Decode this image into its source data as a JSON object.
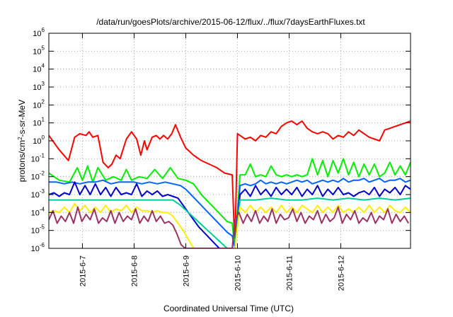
{
  "chart_data": {
    "type": "line",
    "title": "/data/run/goesPlots/archive/2015-06-12/flux/../flux/7daysEarthFluxes.txt",
    "xlabel": "Coordinated Universal Time (UTC)",
    "ylabel_parts": {
      "base": "protons/cm",
      "sup": "2",
      "rest": "-s-sr-MeV"
    },
    "yscale": "log",
    "ylim_exp": [
      -6,
      6
    ],
    "ytick_base": "10",
    "ytick_exponents": [
      "6",
      "5",
      "4",
      "3",
      "2",
      "1",
      "0",
      "-1",
      "-2",
      "-3",
      "-4",
      "-5",
      "-6"
    ],
    "xlim_days": [
      0,
      7
    ],
    "xtick_labels": [
      "2015-6-7",
      "2015-6-8",
      "2015-6-9",
      "2015-6-10",
      "2015-6-11",
      "2015-6-12"
    ],
    "xtick_positions_days": [
      0.65,
      1.65,
      2.65,
      3.65,
      4.65,
      5.65
    ],
    "grid": true,
    "data_gap_days": [
      3.55,
      3.6
    ],
    "series": [
      {
        "name": "red",
        "color": "#ff0000",
        "t": [
          0,
          0.2,
          0.38,
          0.5,
          0.6,
          0.72,
          0.78,
          0.85,
          0.95,
          1.05,
          1.15,
          1.22,
          1.3,
          1.38,
          1.5,
          1.6,
          1.7,
          1.78,
          1.85,
          1.9,
          2.0,
          2.08,
          2.15,
          2.22,
          2.3,
          2.38,
          2.45,
          2.55,
          2.65,
          2.8,
          2.95,
          3.1,
          3.25,
          3.4,
          3.55,
          3.6,
          3.65,
          3.7,
          3.8,
          3.9,
          4.0,
          4.1,
          4.2,
          4.3,
          4.4,
          4.5,
          4.6,
          4.7,
          4.8,
          4.9,
          5.0,
          5.1,
          5.2,
          5.3,
          5.4,
          5.5,
          5.6,
          5.7,
          5.8,
          5.9,
          6.0,
          6.1,
          6.2,
          6.3,
          6.4,
          6.5,
          6.6,
          6.7,
          6.8,
          6.9,
          7.0
        ],
        "log10": [
          0.3,
          -0.5,
          -1.1,
          0.2,
          0.4,
          0.3,
          0.5,
          0.2,
          0.3,
          -1.2,
          -1.5,
          -1.3,
          -0.8,
          -1.0,
          0.1,
          0.5,
          0.1,
          -0.8,
          0.0,
          -0.5,
          0.2,
          0.3,
          0.1,
          0.3,
          0.1,
          0.4,
          0.9,
          0.2,
          -0.4,
          -0.8,
          -1.1,
          -1.3,
          -1.5,
          -1.8,
          -1.9,
          -6,
          0.4,
          0.3,
          0.1,
          0.2,
          0.0,
          0.3,
          0.2,
          0.5,
          0.4,
          0.8,
          1.0,
          1.1,
          0.9,
          1.1,
          0.7,
          0.5,
          0.4,
          0.5,
          0.4,
          0.1,
          0.3,
          0.2,
          0.5,
          0.3,
          0.6,
          0.4,
          0.2,
          0.1,
          0.0,
          0.6,
          0.7,
          0.8,
          0.9,
          1.0,
          1.1
        ]
      },
      {
        "name": "green",
        "color": "#00ee00",
        "t": [
          0,
          0.2,
          0.4,
          0.55,
          0.65,
          0.75,
          0.85,
          0.95,
          1.1,
          1.25,
          1.4,
          1.5,
          1.6,
          1.75,
          1.9,
          2.05,
          2.2,
          2.35,
          2.5,
          2.65,
          2.8,
          2.95,
          3.05,
          3.15,
          3.25,
          3.35,
          3.45,
          3.55,
          3.6,
          3.7,
          3.8,
          3.9,
          4.0,
          4.1,
          4.2,
          4.3,
          4.4,
          4.5,
          4.6,
          4.7,
          4.8,
          4.9,
          5.0,
          5.1,
          5.2,
          5.3,
          5.4,
          5.5,
          5.6,
          5.7,
          5.8,
          5.9,
          6.0,
          6.1,
          6.2,
          6.3,
          6.4,
          6.5,
          6.6,
          6.7,
          6.8,
          6.9,
          7.0
        ],
        "log10": [
          -1.8,
          -2.2,
          -2.3,
          -1.5,
          -2.2,
          -1.4,
          -2.3,
          -1.5,
          -2.2,
          -2.0,
          -2.2,
          -1.6,
          -2.2,
          -2.0,
          -2.1,
          -1.6,
          -2.1,
          -1.5,
          -2.1,
          -2.2,
          -2.4,
          -3.0,
          -3.3,
          -3.6,
          -3.9,
          -4.2,
          -4.5,
          -4.6,
          -6,
          -1.9,
          -1.9,
          -1.3,
          -2.0,
          -1.9,
          -2.0,
          -1.4,
          -1.9,
          -2.0,
          -1.9,
          -2.0,
          -1.9,
          -2.0,
          -1.9,
          -1.0,
          -1.9,
          -1.1,
          -2.0,
          -1.1,
          -1.8,
          -1.0,
          -1.9,
          -1.2,
          -2.0,
          -1.3,
          -1.9,
          -1.3,
          -2.0,
          -1.8,
          -1.2,
          -1.9,
          -1.4,
          -1.9,
          -1.2
        ]
      },
      {
        "name": "blue_light",
        "color": "#0066ff",
        "t": [
          0,
          0.15,
          0.3,
          0.45,
          0.6,
          0.75,
          0.9,
          1.05,
          1.2,
          1.35,
          1.5,
          1.65,
          1.8,
          1.95,
          2.1,
          2.25,
          2.4,
          2.55,
          2.65,
          2.75,
          2.85,
          2.95,
          3.05,
          3.15,
          3.25,
          3.35,
          3.45,
          3.55,
          3.6,
          3.7,
          3.8,
          3.9,
          4.0,
          4.1,
          4.2,
          4.3,
          4.4,
          4.5,
          4.6,
          4.7,
          4.8,
          4.9,
          5.0,
          5.1,
          5.2,
          5.3,
          5.4,
          5.5,
          5.6,
          5.7,
          5.8,
          5.9,
          6.0,
          6.1,
          6.2,
          6.3,
          6.4,
          6.5,
          6.6,
          6.7,
          6.8,
          6.9,
          7.0
        ],
        "log10": [
          -2.3,
          -2.3,
          -2.4,
          -2.3,
          -2.4,
          -2.3,
          -2.3,
          -2.2,
          -2.4,
          -2.3,
          -2.3,
          -2.3,
          -2.4,
          -2.3,
          -2.4,
          -2.3,
          -2.4,
          -2.5,
          -2.7,
          -3.0,
          -3.3,
          -3.6,
          -3.9,
          -4.2,
          -4.5,
          -4.8,
          -5.1,
          -5.3,
          -6,
          -2.5,
          -2.4,
          -2.5,
          -2.4,
          -2.2,
          -2.4,
          -2.3,
          -2.4,
          -2.3,
          -2.4,
          -2.3,
          -2.2,
          -2.3,
          -2.2,
          -2.4,
          -2.3,
          -2.2,
          -2.3,
          -2.2,
          -2.3,
          -2.1,
          -2.3,
          -2.2,
          -2.2,
          -2.1,
          -2.3,
          -2.2,
          -2.1,
          -2.3,
          -2.2,
          -2.2,
          -2.1,
          -2.3,
          -2.2
        ]
      },
      {
        "name": "blue_dark",
        "color": "#0000cc",
        "t": [
          0,
          0.1,
          0.2,
          0.3,
          0.4,
          0.5,
          0.6,
          0.7,
          0.8,
          0.9,
          1.0,
          1.1,
          1.2,
          1.3,
          1.4,
          1.5,
          1.6,
          1.7,
          1.8,
          1.9,
          2.0,
          2.1,
          2.2,
          2.3,
          2.4,
          2.5,
          2.6,
          2.7,
          2.8,
          2.9,
          3.0,
          3.1,
          3.2,
          3.3,
          3.4,
          3.55,
          3.6,
          3.7,
          3.8,
          3.9,
          4.0,
          4.1,
          4.2,
          4.3,
          4.4,
          4.5,
          4.6,
          4.7,
          4.8,
          4.9,
          5.0,
          5.1,
          5.2,
          5.3,
          5.4,
          5.5,
          5.6,
          5.7,
          5.8,
          5.9,
          6.0,
          6.1,
          6.2,
          6.3,
          6.4,
          6.5,
          6.6,
          6.7,
          6.8,
          6.9,
          7.0
        ],
        "log10": [
          -3.0,
          -2.9,
          -3.1,
          -2.9,
          -3.0,
          -2.3,
          -3.0,
          -2.5,
          -3.0,
          -2.4,
          -3.0,
          -2.6,
          -3.1,
          -2.6,
          -3.0,
          -2.9,
          -3.0,
          -2.4,
          -3.1,
          -2.8,
          -3.0,
          -2.8,
          -3.1,
          -3.0,
          -3.1,
          -3.2,
          -3.6,
          -4.0,
          -4.4,
          -4.8,
          -5.1,
          -5.4,
          -5.7,
          -6,
          -6,
          -6,
          -6,
          -3.0,
          -2.7,
          -3.1,
          -2.5,
          -3.0,
          -2.7,
          -3.1,
          -2.6,
          -3.0,
          -2.7,
          -3.0,
          -2.6,
          -3.1,
          -2.7,
          -3.0,
          -2.5,
          -3.1,
          -2.7,
          -3.0,
          -2.6,
          -3.0,
          -2.9,
          -3.1,
          -2.9,
          -2.8,
          -3.0,
          -2.6,
          -3.1,
          -2.7,
          -2.9,
          -2.6,
          -3.0,
          -2.5,
          -2.7
        ]
      },
      {
        "name": "teal",
        "color": "#00cc99",
        "t": [
          0,
          0.3,
          0.6,
          0.9,
          1.2,
          1.5,
          1.8,
          2.1,
          2.4,
          2.55,
          2.7,
          2.85,
          3.0,
          3.15,
          3.3,
          3.45,
          3.55,
          3.6,
          3.7,
          4.0,
          4.3,
          4.6,
          4.9,
          5.2,
          5.5,
          5.8,
          6.1,
          6.4,
          6.7,
          7.0
        ],
        "log10": [
          -3.3,
          -3.3,
          -3.3,
          -3.3,
          -3.3,
          -3.3,
          -3.3,
          -3.3,
          -3.3,
          -3.6,
          -4.0,
          -4.4,
          -4.8,
          -5.2,
          -5.6,
          -6,
          -6,
          -6,
          -3.3,
          -3.3,
          -3.2,
          -3.3,
          -3.3,
          -3.2,
          -3.3,
          -3.2,
          -3.3,
          -3.2,
          -3.3,
          -3.2
        ]
      },
      {
        "name": "yellow",
        "color": "#ffee00",
        "t": [
          0,
          0.1,
          0.2,
          0.3,
          0.4,
          0.5,
          0.6,
          0.7,
          0.8,
          0.9,
          1.0,
          1.1,
          1.2,
          1.3,
          1.4,
          1.5,
          1.6,
          1.7,
          1.8,
          1.9,
          2.0,
          2.1,
          2.2,
          2.3,
          2.4,
          2.5,
          2.6,
          2.7,
          2.8,
          2.9,
          3.0,
          3.55,
          3.6,
          3.7,
          3.8,
          3.9,
          4.0,
          4.1,
          4.2,
          4.3,
          4.4,
          4.5,
          4.6,
          4.7,
          4.8,
          4.9,
          5.0,
          5.1,
          5.2,
          5.3,
          5.4,
          5.5,
          5.6,
          5.7,
          5.8,
          5.9,
          6.0,
          6.1,
          6.2,
          6.3,
          6.4,
          6.5,
          6.6,
          6.7,
          6.8,
          6.9,
          7.0
        ],
        "log10": [
          -4.0,
          -3.9,
          -4.0,
          -3.7,
          -4.0,
          -3.5,
          -3.9,
          -3.6,
          -4.0,
          -3.7,
          -4.0,
          -3.6,
          -4.0,
          -3.8,
          -3.9,
          -3.6,
          -4.0,
          -3.7,
          -3.9,
          -3.9,
          -4.0,
          -3.9,
          -4.0,
          -4.0,
          -4.2,
          -4.6,
          -5.0,
          -5.5,
          -6,
          -6,
          -6,
          -6,
          -6,
          -3.7,
          -4.0,
          -3.6,
          -4.0,
          -3.7,
          -4.0,
          -3.7,
          -4.0,
          -3.6,
          -4.0,
          -3.7,
          -4.0,
          -3.6,
          -3.8,
          -4.0,
          -3.6,
          -4.0,
          -3.7,
          -4.0,
          -3.6,
          -4.0,
          -3.8,
          -4.0,
          -3.7,
          -4.0,
          -3.6,
          -4.0,
          -3.7,
          -4.0,
          -3.6,
          -3.9,
          -4.0,
          -3.7,
          -4.0
        ]
      },
      {
        "name": "purple",
        "color": "#993366",
        "t": [
          0,
          0.08,
          0.16,
          0.24,
          0.32,
          0.4,
          0.48,
          0.56,
          0.64,
          0.72,
          0.8,
          0.88,
          0.96,
          1.04,
          1.12,
          1.2,
          1.28,
          1.36,
          1.44,
          1.52,
          1.6,
          1.68,
          1.76,
          1.84,
          1.92,
          2.0,
          2.08,
          2.16,
          2.24,
          2.32,
          2.4,
          2.48,
          2.56,
          2.64,
          2.72,
          2.8,
          2.88,
          2.96,
          3.55,
          3.6,
          3.68,
          3.76,
          3.84,
          3.92,
          4.0,
          4.08,
          4.16,
          4.24,
          4.32,
          4.4,
          4.48,
          4.56,
          4.64,
          4.72,
          4.8,
          4.88,
          4.96,
          5.04,
          5.12,
          5.2,
          5.28,
          5.36,
          5.44,
          5.52,
          5.6,
          5.68,
          5.76,
          5.84,
          5.92,
          6.0,
          6.08,
          6.16,
          6.24,
          6.32,
          6.4,
          6.48,
          6.56,
          6.64,
          6.72,
          6.8,
          6.88,
          6.96
        ],
        "log10": [
          -4.4,
          -3.9,
          -4.6,
          -4.2,
          -4.5,
          -4.0,
          -4.6,
          -3.7,
          -4.5,
          -4.1,
          -4.4,
          -3.8,
          -4.6,
          -4.3,
          -4.5,
          -3.9,
          -4.6,
          -4.0,
          -4.5,
          -4.2,
          -4.4,
          -3.8,
          -4.6,
          -4.2,
          -4.5,
          -3.9,
          -4.5,
          -4.2,
          -4.6,
          -4.5,
          -4.7,
          -5.2,
          -5.8,
          -6,
          -6,
          -6,
          -6,
          -6,
          -6,
          -4.4,
          -4.0,
          -4.6,
          -4.1,
          -4.5,
          -3.9,
          -4.6,
          -4.2,
          -4.5,
          -3.8,
          -4.6,
          -4.1,
          -4.4,
          -4.3,
          -3.8,
          -4.5,
          -4.0,
          -4.6,
          -4.2,
          -4.4,
          -3.9,
          -4.6,
          -4.1,
          -4.5,
          -4.3,
          -3.7,
          -4.6,
          -4.1,
          -4.4,
          -3.9,
          -4.6,
          -4.3,
          -4.5,
          -4.0,
          -4.6,
          -4.2,
          -4.4,
          -3.8,
          -4.6,
          -4.1,
          -4.5,
          -4.2,
          -4.6
        ]
      }
    ]
  }
}
